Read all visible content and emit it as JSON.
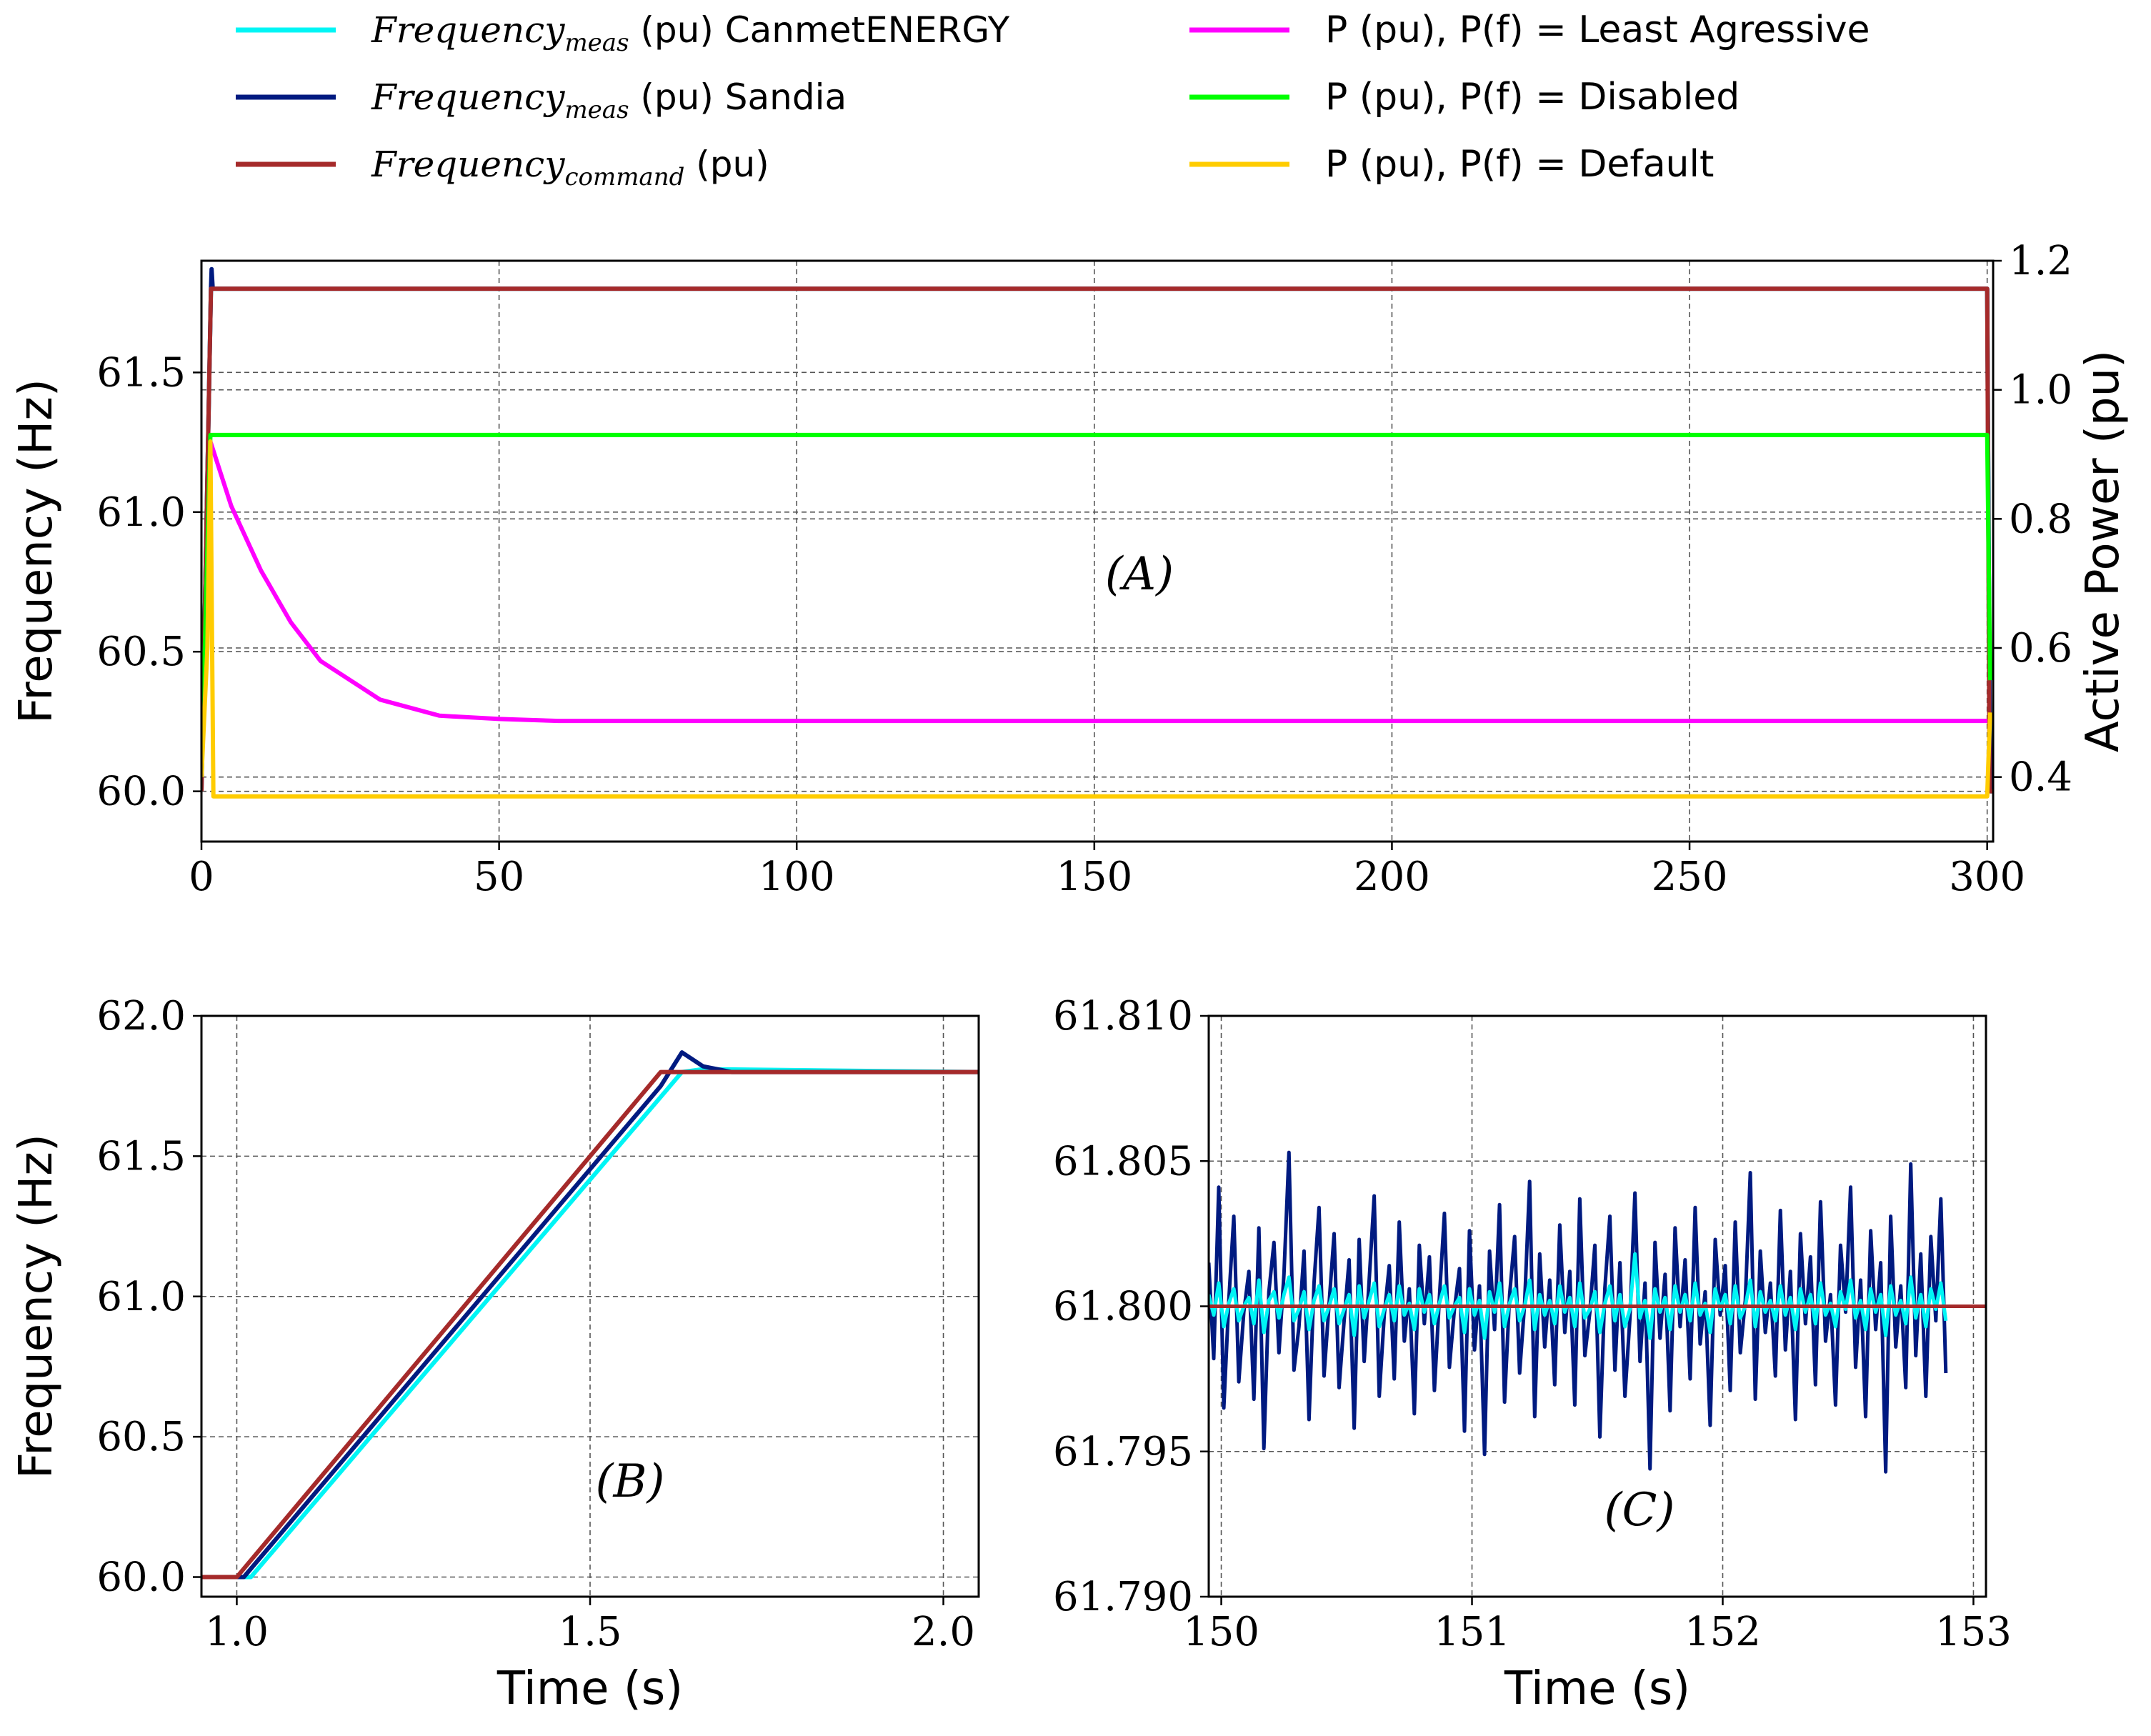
{
  "legend": {
    "entries": [
      {
        "main": "Frequency",
        "sub": "meas",
        "suffix": "(pu) CanmetENERGY",
        "color": "#00F5F5"
      },
      {
        "main": "Frequency",
        "sub": "meas",
        "suffix": "(pu) Sandia",
        "color": "#001A80"
      },
      {
        "main": "Frequency",
        "sub": "command",
        "suffix": "(pu)",
        "color": "#A52A2A"
      },
      {
        "text": "P (pu), P(f) = Least Agressive",
        "color": "#FF00FF"
      },
      {
        "text": "P (pu), P(f) = Disabled",
        "color": "#00FF00"
      },
      {
        "text": "P (pu), P(f) = Default",
        "color": "#FFCC00"
      }
    ]
  },
  "chart_data": [
    {
      "id": "A",
      "type": "line",
      "annotation": "(A)",
      "xlabel": "",
      "ylabel": "Frequency (Hz)",
      "y2label": "Active Power (pu)",
      "xlim": [
        0,
        301
      ],
      "ylim": [
        59.82,
        61.9
      ],
      "y2lim": [
        0.3,
        1.2
      ],
      "xticks": [
        "0",
        "50",
        "100",
        "150",
        "200",
        "250",
        "300"
      ],
      "yticks": [
        "60.0",
        "60.5",
        "61.0",
        "61.5"
      ],
      "y2ticks": [
        "0.4",
        "0.6",
        "0.8",
        "1.0",
        "1.2"
      ],
      "grid": true,
      "series": [
        {
          "name": "Frequency_meas (pu) CanmetENERGY",
          "axis": "left",
          "color": "#00F5F5",
          "x": [
            0,
            1.6,
            1.8,
            300,
            300.5,
            301
          ],
          "y": [
            60.0,
            61.8,
            61.8,
            61.8,
            60.0,
            60.0
          ]
        },
        {
          "name": "Frequency_meas (pu) Sandia",
          "axis": "left",
          "color": "#001A80",
          "x": [
            0,
            1.6,
            1.7,
            1.9,
            300,
            300.5,
            301
          ],
          "y": [
            60.0,
            61.8,
            61.87,
            61.8,
            61.8,
            60.0,
            60.0
          ]
        },
        {
          "name": "Frequency_command (pu)",
          "axis": "left",
          "color": "#A52A2A",
          "x": [
            0,
            1.6,
            300,
            300.4,
            301
          ],
          "y": [
            60.0,
            61.8,
            61.8,
            60.0,
            60.0
          ]
        },
        {
          "name": "P (pu), P(f) = Least Agressive",
          "axis": "right",
          "color": "#FF00FF",
          "x": [
            0,
            1.5,
            5,
            10,
            15,
            20,
            30,
            40,
            50,
            60,
            100,
            150,
            200,
            250,
            300
          ],
          "y": [
            0.4,
            0.92,
            0.82,
            0.72,
            0.64,
            0.58,
            0.52,
            0.495,
            0.49,
            0.487,
            0.487,
            0.487,
            0.487,
            0.487,
            0.487
          ]
        },
        {
          "name": "P (pu), P(f) = Disabled",
          "axis": "right",
          "color": "#00FF00",
          "x": [
            0,
            1.5,
            2,
            300,
            300.5
          ],
          "y": [
            0.4,
            0.93,
            0.93,
            0.93,
            0.55
          ]
        },
        {
          "name": "P (pu), P(f) = Default",
          "axis": "right",
          "color": "#FFCC00",
          "x": [
            0,
            1.0,
            1.5,
            2.0,
            300,
            300.5
          ],
          "y": [
            0.4,
            0.6,
            0.92,
            0.37,
            0.37,
            0.5
          ]
        }
      ]
    },
    {
      "id": "B",
      "type": "line",
      "annotation": "(B)",
      "xlabel": "Time (s)",
      "ylabel": "Frequency (Hz)",
      "xlim": [
        0.95,
        2.05
      ],
      "ylim": [
        59.93,
        62.0
      ],
      "xticks": [
        "1.0",
        "1.5",
        "2.0"
      ],
      "yticks": [
        "60.0",
        "60.5",
        "61.0",
        "61.5",
        "62.0"
      ],
      "grid": true,
      "series": [
        {
          "name": "Frequency_meas (pu) CanmetENERGY",
          "color": "#00F5F5",
          "x": [
            0.95,
            1.02,
            1.63,
            1.66,
            2.05
          ],
          "y": [
            60.0,
            60.0,
            61.8,
            61.81,
            61.8
          ]
        },
        {
          "name": "Frequency_meas (pu) Sandia",
          "color": "#001A80",
          "x": [
            0.95,
            1.01,
            1.6,
            1.63,
            1.66,
            1.7,
            2.05
          ],
          "y": [
            60.0,
            60.0,
            61.75,
            61.87,
            61.82,
            61.8,
            61.8
          ]
        },
        {
          "name": "Frequency_command (pu)",
          "color": "#A52A2A",
          "x": [
            0.95,
            1.0,
            1.6,
            2.05
          ],
          "y": [
            60.0,
            60.0,
            61.8,
            61.8
          ]
        }
      ]
    },
    {
      "id": "C",
      "type": "line",
      "annotation": "(C)",
      "xlabel": "Time (s)",
      "ylabel": "",
      "xlim": [
        149.95,
        153.05
      ],
      "ylim": [
        61.79,
        61.81
      ],
      "xticks": [
        "150",
        "151",
        "152",
        "153"
      ],
      "yticks": [
        "61.790",
        "61.795",
        "61.800",
        "61.805",
        "61.810"
      ],
      "grid": true,
      "series": [
        {
          "name": "Frequency_meas (pu) Sandia",
          "color": "#001A80",
          "x_start": 149.95,
          "x_step": 0.02,
          "y": [
            61.8015,
            61.7982,
            61.8041,
            61.7965,
            61.8002,
            61.8031,
            61.7974,
            61.7998,
            61.8012,
            61.7968,
            61.8027,
            61.7951,
            61.8005,
            61.8022,
            61.7984,
            61.8011,
            61.8053,
            61.7978,
            61.7993,
            61.8019,
            61.7961,
            61.8008,
            61.8034,
            61.7976,
            61.8001,
            61.8025,
            61.7972,
            61.7995,
            61.8016,
            61.7958,
            61.8023,
            61.7981,
            61.8009,
            61.8038,
            61.7969,
            61.7997,
            61.8014,
            61.7975,
            61.8029,
            61.7988,
            61.8006,
            61.7963,
            61.8021,
            61.7994,
            61.8017,
            61.7971,
            61.8003,
            61.8032,
            61.7979,
            61.7999,
            61.8013,
            61.7957,
            61.8026,
            61.7985,
            61.8007,
            61.7949,
            61.8019,
            61.7992,
            61.8035,
            61.7967,
            61.8004,
            61.8024,
            61.7977,
            61.8001,
            61.8043,
            61.7962,
            61.8018,
            61.7986,
            61.8009,
            61.7973,
            61.8028,
            61.7991,
            61.8012,
            61.7966,
            61.8037,
            61.7983,
            61.7998,
            61.8021,
            61.7955,
            61.8006,
            61.8031,
            61.7978,
            61.8015,
            61.7969,
            61.7996,
            61.8039,
            61.7981,
            61.8008,
            61.7944,
            61.8022,
            61.7989,
            61.8011,
            61.7964,
            61.8027,
            61.7993,
            61.8016,
            61.7975,
            61.8034,
            61.7987,
            61.8005,
            61.7959,
            61.8023,
            61.7997,
            61.8014,
            61.7971,
            61.8029,
            61.7984,
            61.8002,
            61.8046,
            61.7968,
            61.8019,
            61.7991,
            61.8008,
            61.7976,
            61.8033,
            61.7985,
            61.8012,
            61.7961,
            61.8025,
            61.7994,
            61.8017,
            61.7973,
            61.8036,
            61.7988,
            61.8004,
            61.7966,
            61.8021,
            61.7998,
            61.8041,
            61.7979,
            61.8009,
            61.7962,
            61.8026,
            61.7992,
            61.8015,
            61.7943,
            61.8031,
            61.7986,
            61.8007,
            61.7972,
            61.8049,
            61.7983,
            61.8018,
            61.7969,
            61.8024,
            61.7995,
            61.8037,
            61.7977
          ]
        },
        {
          "name": "Frequency_meas (pu) CanmetENERGY",
          "color": "#00F5F5",
          "x_start": 149.95,
          "x_step": 0.02,
          "y": [
            61.8004,
            61.7997,
            61.8008,
            61.7993,
            61.8001,
            61.8006,
            61.7995,
            61.8,
            61.8003,
            61.7994,
            61.8009,
            61.7991,
            61.8002,
            61.8005,
            61.7996,
            61.8004,
            61.801,
            61.7995,
            61.7999,
            61.8005,
            61.7992,
            61.8002,
            61.8007,
            61.7995,
            61.8,
            61.8006,
            61.7994,
            61.7999,
            61.8004,
            61.799,
            61.8007,
            61.7996,
            61.8002,
            61.8008,
            61.7993,
            61.7999,
            61.8004,
            61.7995,
            61.8007,
            61.7997,
            61.8001,
            61.7992,
            61.8006,
            61.7998,
            61.8004,
            61.7994,
            61.8001,
            61.8007,
            61.7996,
            61.8,
            61.8003,
            61.7991,
            61.8006,
            61.7997,
            61.8002,
            61.7989,
            61.8005,
            61.7998,
            61.8008,
            61.7993,
            61.8001,
            61.8006,
            61.7995,
            61.8,
            61.8009,
            61.7992,
            61.8004,
            61.7997,
            61.8002,
            61.7994,
            61.8007,
            61.7998,
            61.8003,
            61.7993,
            61.8008,
            61.7996,
            61.7999,
            61.8005,
            61.7991,
            61.8001,
            61.8007,
            61.7995,
            61.8004,
            61.7993,
            61.7999,
            61.8018,
            61.7996,
            61.8002,
            61.7989,
            61.8006,
            61.7998,
            61.8003,
            61.7992,
            61.8007,
            61.7998,
            61.8004,
            61.7995,
            61.8008,
            61.7997,
            61.8001,
            61.7991,
            61.8006,
            61.7999,
            61.8004,
            61.7994,
            61.8007,
            61.7996,
            61.8,
            61.8009,
            61.7993,
            61.8005,
            61.7998,
            61.8002,
            61.7995,
            61.8007,
            61.7997,
            61.8003,
            61.7992,
            61.8006,
            61.7998,
            61.8004,
            61.7994,
            61.8008,
            61.7997,
            61.8001,
            61.7993,
            61.8005,
            61.7999,
            61.8009,
            61.7996,
            61.8002,
            61.7992,
            61.8006,
            61.7998,
            61.8004,
            61.799,
            61.8007,
            61.7997,
            61.8002,
            61.7994,
            61.801,
            61.7996,
            61.8004,
            61.7993,
            61.8006,
            61.7999,
            61.8008,
            61.7995
          ]
        },
        {
          "name": "Frequency_command (pu)",
          "color": "#A52A2A",
          "x": [
            149.95,
            153.05
          ],
          "y": [
            61.8,
            61.8
          ]
        }
      ]
    }
  ]
}
